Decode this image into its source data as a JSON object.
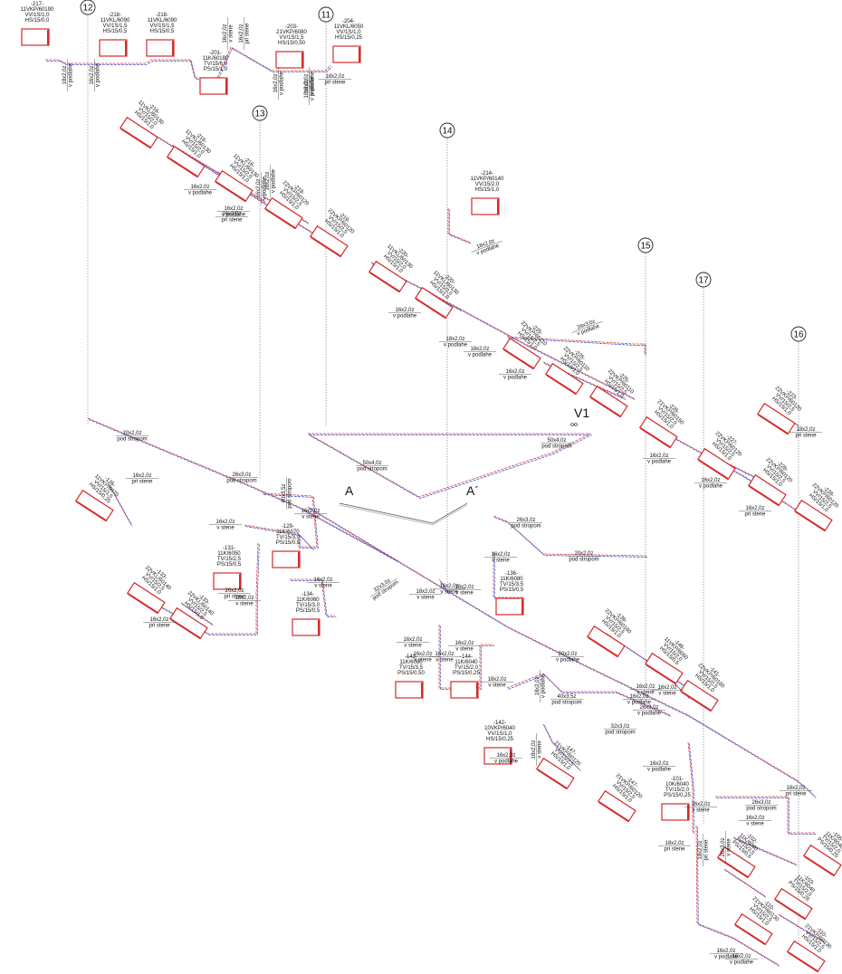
{
  "axes": [
    {
      "id": "12",
      "label": "12"
    },
    {
      "id": "11",
      "label": "11"
    },
    {
      "id": "13",
      "label": "13"
    },
    {
      "id": "14",
      "label": "14"
    },
    {
      "id": "15",
      "label": "15"
    },
    {
      "id": "17",
      "label": "17"
    },
    {
      "id": "16",
      "label": "16"
    }
  ],
  "markers": [
    {
      "id": "A",
      "label": "A"
    },
    {
      "id": "A2",
      "label": "A´"
    },
    {
      "id": "V1",
      "label": "V1"
    }
  ],
  "radiators": [
    {
      "id": "r217",
      "lines": [
        "-217-",
        "11VKP/60190",
        "VV/1S/1,0",
        "HS/15/0,0"
      ]
    },
    {
      "id": "r218a",
      "lines": [
        "-218-",
        "11VKL/6090",
        "VV/1S/1,5",
        "HS/15/0,5"
      ]
    },
    {
      "id": "r218b",
      "lines": [
        "-218-",
        "11VKL/6090",
        "VV/1S/1,5",
        "HS/15/0,5"
      ]
    },
    {
      "id": "r201",
      "lines": [
        "-201-",
        "11K/60180",
        "TV/15/6,0",
        "PS/15/1,0"
      ]
    },
    {
      "id": "r203",
      "lines": [
        "-203-",
        "21VKP/6080",
        "VV/1S/1,5",
        "HS/15/0,50"
      ]
    },
    {
      "id": "r204",
      "lines": [
        "-204-",
        "11VKL/6050",
        "VV/1S/1,0",
        "HS/15/0,25"
      ]
    },
    {
      "id": "r216a",
      "lines": [
        "-216-",
        "11VKL/60130",
        "VV/15/2,0",
        "HS/15/1,0"
      ]
    },
    {
      "id": "r216b",
      "lines": [
        "-216-",
        "11VKL/60130",
        "VV/15/2,0",
        "HS/15/1,0"
      ]
    },
    {
      "id": "r216c",
      "lines": [
        "-216-",
        "11VKL/60130",
        "VV/15/2,0",
        "HS/15/1,0"
      ]
    },
    {
      "id": "r219a",
      "lines": [
        "-219-",
        "22VKP/60120",
        "VV/15/2,5",
        "HS/15/1,0"
      ]
    },
    {
      "id": "r219b",
      "lines": [
        "-219-",
        "22VKP/60120",
        "VV/15/2,5",
        "HS/15/1,0"
      ]
    },
    {
      "id": "r214",
      "lines": [
        "-214-",
        "11VKP/60140",
        "VV/15/2,0",
        "HS/15/1,0"
      ]
    },
    {
      "id": "r220a",
      "lines": [
        "-220-",
        "11VKL/60130",
        "VV/15/2,0",
        "HS/15/1,0"
      ]
    },
    {
      "id": "r220b",
      "lines": [
        "-220-",
        "11VKL/60130",
        "VV/15/2,0",
        "HS/15/1,0"
      ]
    },
    {
      "id": "r225a",
      "lines": [
        "-225-",
        "22VKP/60110",
        "VV/15/2,5",
        "HS/15/1,0"
      ]
    },
    {
      "id": "r225b",
      "lines": [
        "-225-",
        "22VKP/60110",
        "VV/15/2,5",
        "HS/15/1,0"
      ]
    },
    {
      "id": "r225c",
      "lines": [
        "-225-",
        "22VKP/60110",
        "VV/15/2,5",
        "HS/15/1,0"
      ]
    },
    {
      "id": "r226",
      "lines": [
        "-226-",
        "21VKP/60150",
        "VV/15/2,0",
        "HS/15/1,0"
      ]
    },
    {
      "id": "r227",
      "lines": [
        "-227-",
        "22VKP/60120",
        "VV/15/2,5",
        "HS/15/1,0"
      ]
    },
    {
      "id": "r228a",
      "lines": [
        "-228-",
        "22VKP/60120",
        "VV/15/2,5",
        "HS/15/1,0"
      ]
    },
    {
      "id": "r228b",
      "lines": [
        "-228-",
        "22VKP/60120",
        "VV/15/2,5",
        "HS/15/1,0"
      ]
    },
    {
      "id": "r223",
      "lines": [
        "-223-",
        "22VKP/60120",
        "VV/15/2,5",
        "HS/15/1,0"
      ]
    },
    {
      "id": "r126",
      "lines": [
        "-126-",
        "11VKP/6070",
        "VV/15/1,5",
        "HS/15/0,25"
      ]
    },
    {
      "id": "r129",
      "lines": [
        "-129-",
        "11K/6070",
        "TV/15/3,0",
        "PS/15/0,5"
      ]
    },
    {
      "id": "r131",
      "lines": [
        "-131-",
        "11K/6050",
        "TV/15/2,5",
        "PS/15/0,5"
      ]
    },
    {
      "id": "r134",
      "lines": [
        "-134-",
        "11K/6060",
        "TV/15/3,0",
        "PS/15/0,5"
      ]
    },
    {
      "id": "r133a",
      "lines": [
        "-133-",
        "22VKL/60140",
        "VV/15/2,5",
        "HS/15/1,0"
      ]
    },
    {
      "id": "r133b",
      "lines": [
        "-133-",
        "22VKL/60140",
        "VV/15/2,5",
        "HS/15/1,0"
      ]
    },
    {
      "id": "r136",
      "lines": [
        "-136-",
        "11K/6080",
        "TV/15/3,5",
        "PS/15/0,5"
      ]
    },
    {
      "id": "r143",
      "lines": [
        "-143-",
        "11K/6080",
        "TV/15/3,5",
        "PS/15/0,50"
      ]
    },
    {
      "id": "r144",
      "lines": [
        "-144-",
        "11K/6040",
        "TV/15/2,0",
        "PS/15/0,25"
      ]
    },
    {
      "id": "r139",
      "lines": [
        "-139-",
        "22VKP/60160",
        "VV/15/2,5",
        "HS/15/1,0"
      ]
    },
    {
      "id": "r146",
      "lines": [
        "-146-",
        "11VKP/6060",
        "VV/15/2,0",
        "HS/15/0,5"
      ]
    },
    {
      "id": "r141",
      "lines": [
        "-141-",
        "22VKP/60160",
        "VV/15/2,5",
        "HS/15/1,0"
      ]
    },
    {
      "id": "r142",
      "lines": [
        "-142-",
        "10VKP/6040",
        "VV/1S/1,0",
        "HS/15/0,25"
      ]
    },
    {
      "id": "r147a",
      "lines": [
        "-147-",
        "21VKP/60120",
        "VV/15/2,5",
        "HS/15/1,0"
      ]
    },
    {
      "id": "r147b",
      "lines": [
        "-147-",
        "21VKP/60120",
        "VV/15/2,5",
        "HS/15/1,0"
      ]
    },
    {
      "id": "r101",
      "lines": [
        "-101-",
        "10K/6040",
        "TV/15/2,0",
        "PS/15/0,25"
      ]
    },
    {
      "id": "r102",
      "lines": [
        "-102-",
        "11K/6080",
        "TV/15/3,5",
        "PS/15/0,5"
      ]
    },
    {
      "id": "r103",
      "lines": [
        "-103-",
        "11K/6040",
        "TV/15/2,0",
        "PS/15/0,25"
      ]
    },
    {
      "id": "r105",
      "lines": [
        "-105-",
        "11K/6040",
        "TV/15/2,0",
        "PS/15/0,25"
      ]
    },
    {
      "id": "r110a",
      "lines": [
        "-110-",
        "21VKP/60130",
        "VV/15/2,5",
        "HS/15/1,0"
      ]
    },
    {
      "id": "r110b",
      "lines": [
        "-110-",
        "21VKP/60130",
        "VV/15/2,5",
        "HS/15/1,0"
      ]
    }
  ],
  "pipe_labels": [
    {
      "id": "p1",
      "lines": [
        "18x2,0z",
        "v podlahe"
      ]
    },
    {
      "id": "p2",
      "lines": [
        "16x2,0z",
        "v podlahe"
      ]
    },
    {
      "id": "p3",
      "lines": [
        "16x2,0z",
        "v stene"
      ]
    },
    {
      "id": "p4",
      "lines": [
        "16x2,0z",
        "pri stene"
      ]
    },
    {
      "id": "p5",
      "lines": [
        "18x2,0z",
        "pri stene"
      ]
    },
    {
      "id": "p6",
      "lines": [
        "16x2,0z",
        "v podlahe"
      ]
    },
    {
      "id": "p7",
      "lines": [
        "16x2,0z",
        "v podlahe"
      ]
    },
    {
      "id": "p8",
      "lines": [
        "16x2,0z",
        "v podlahe"
      ]
    },
    {
      "id": "p9",
      "lines": [
        "16x2,0z",
        "v podlahe"
      ]
    },
    {
      "id": "p10",
      "lines": [
        "16x2,0z",
        "v podlahe"
      ]
    },
    {
      "id": "p11",
      "lines": [
        "16x2,0z",
        "v podlahe"
      ]
    },
    {
      "id": "p12",
      "lines": [
        "26x3,0z",
        "pri stene"
      ]
    },
    {
      "id": "p13",
      "lines": [
        "18x2,0z",
        "v podlahe"
      ]
    },
    {
      "id": "p14",
      "lines": [
        "16x2,0z",
        "v podlahe"
      ]
    },
    {
      "id": "p15",
      "lines": [
        "18x2,0z",
        "v podlahe"
      ]
    },
    {
      "id": "p16",
      "lines": [
        "18x2,0z",
        "v podlahe"
      ]
    },
    {
      "id": "p17",
      "lines": [
        "16x2,0z",
        "v podlahe"
      ]
    },
    {
      "id": "p18",
      "lines": [
        "26x3,0z",
        "v podlahe"
      ]
    },
    {
      "id": "p19",
      "lines": [
        "16x2,0z",
        "v podlahe"
      ]
    },
    {
      "id": "p20",
      "lines": [
        "16x2,0z",
        "v podlahe"
      ]
    },
    {
      "id": "p21",
      "lines": [
        "18x2,0z",
        "pri stene"
      ]
    },
    {
      "id": "p22",
      "lines": [
        "50x4,0z",
        "pod stropom"
      ]
    },
    {
      "id": "p23",
      "lines": [
        "50x4,0z",
        "pod stropom"
      ]
    },
    {
      "id": "p24",
      "lines": [
        "20x2,0z",
        "pod stropom"
      ]
    },
    {
      "id": "p25",
      "lines": [
        "16x2,0z",
        "pri stene"
      ]
    },
    {
      "id": "p26",
      "lines": [
        "26x3,0z",
        "pod stropom"
      ]
    },
    {
      "id": "p27",
      "lines": [
        "40x3,5z",
        "pod stropom"
      ]
    },
    {
      "id": "p28",
      "lines": [
        "16x2,0z",
        "v stene"
      ]
    },
    {
      "id": "p29",
      "lines": [
        "16x2,0z",
        "v stene"
      ]
    },
    {
      "id": "p30",
      "lines": [
        "20x2,0z",
        "pri stene"
      ]
    },
    {
      "id": "p31",
      "lines": [
        "16x2,0z",
        "v stene"
      ]
    },
    {
      "id": "p32",
      "lines": [
        "32x3,0z",
        "pod stropom"
      ]
    },
    {
      "id": "p33",
      "lines": [
        "16x2,0z",
        "pri stene"
      ]
    },
    {
      "id": "p34",
      "lines": [
        "16x2,0z",
        "pri stene"
      ]
    },
    {
      "id": "p35",
      "lines": [
        "26x3,0z",
        "pod stropom"
      ]
    },
    {
      "id": "p36",
      "lines": [
        "20x2,0z",
        "pod stropom"
      ]
    },
    {
      "id": "p37",
      "lines": [
        "16x2,0z",
        "v stene"
      ]
    },
    {
      "id": "p38",
      "lines": [
        "16x2,0z",
        "v stene"
      ]
    },
    {
      "id": "p39",
      "lines": [
        "16x2,0z",
        "v stene"
      ]
    },
    {
      "id": "p40",
      "lines": [
        "16x2,0z",
        "v stene"
      ]
    },
    {
      "id": "p41",
      "lines": [
        "20x2,0z",
        "v podlahe"
      ]
    },
    {
      "id": "p42",
      "lines": [
        "18x2,0z",
        "v stene"
      ]
    },
    {
      "id": "p43",
      "lines": [
        "40x3,5z",
        "pod stropom"
      ]
    },
    {
      "id": "p44",
      "lines": [
        "26x3,0z",
        "v podlahe"
      ]
    },
    {
      "id": "p45",
      "lines": [
        "16x2,0z",
        "v podlahe"
      ]
    },
    {
      "id": "p46",
      "lines": [
        "32x3,0z",
        "pod stropom"
      ]
    },
    {
      "id": "p47",
      "lines": [
        "16x2,0z",
        "v podlahe"
      ]
    },
    {
      "id": "p48",
      "lines": [
        "16x2,0z",
        "v podlahe"
      ]
    },
    {
      "id": "p49",
      "lines": [
        "16x2,0z",
        "v stene"
      ]
    },
    {
      "id": "p50",
      "lines": [
        "16x2,0z",
        "v stene"
      ]
    },
    {
      "id": "p51",
      "lines": [
        "18x2,0z",
        "pri stene"
      ]
    },
    {
      "id": "p52",
      "lines": [
        "26x3,0z",
        "pod stropom"
      ]
    },
    {
      "id": "p53",
      "lines": [
        "16x2,0z",
        "v stene"
      ]
    },
    {
      "id": "p54",
      "lines": [
        "18x2,0z",
        "pri stene"
      ]
    },
    {
      "id": "p55",
      "lines": [
        "16x2,0z",
        "v podlahe"
      ]
    },
    {
      "id": "p56",
      "lines": [
        "16x2,0z",
        "v podlahe"
      ]
    },
    {
      "id": "p57",
      "lines": [
        "18x2,0z",
        "v podlahe"
      ]
    },
    {
      "id": "p58",
      "lines": [
        "18x2,0z",
        "pri stene"
      ]
    },
    {
      "id": "p59",
      "lines": [
        "18x2,0z",
        "v stene"
      ]
    },
    {
      "id": "p60",
      "lines": [
        "26x3,0z",
        "v stene"
      ]
    },
    {
      "id": "p61",
      "lines": [
        "16x2,0z",
        "v stene"
      ]
    },
    {
      "id": "p62",
      "lines": [
        "16x2,0z",
        "v stene"
      ]
    },
    {
      "id": "p63",
      "lines": [
        "16x2,0z",
        "v stene"
      ]
    },
    {
      "id": "p64",
      "lines": [
        "16x2,0z",
        "v stene"
      ]
    },
    {
      "id": "p65",
      "lines": [
        "18x2,0z",
        "v podlahe"
      ]
    },
    {
      "id": "p66",
      "lines": [
        "18x2,0z",
        "v stene"
      ]
    },
    {
      "id": "p67",
      "lines": [
        "18x2,0z",
        "v stene"
      ]
    }
  ],
  "colors": {
    "supply": "#d9383a",
    "return": "#3b52c9",
    "radiator": "#d42b2b",
    "line": "#222222",
    "axis": "#888888"
  }
}
